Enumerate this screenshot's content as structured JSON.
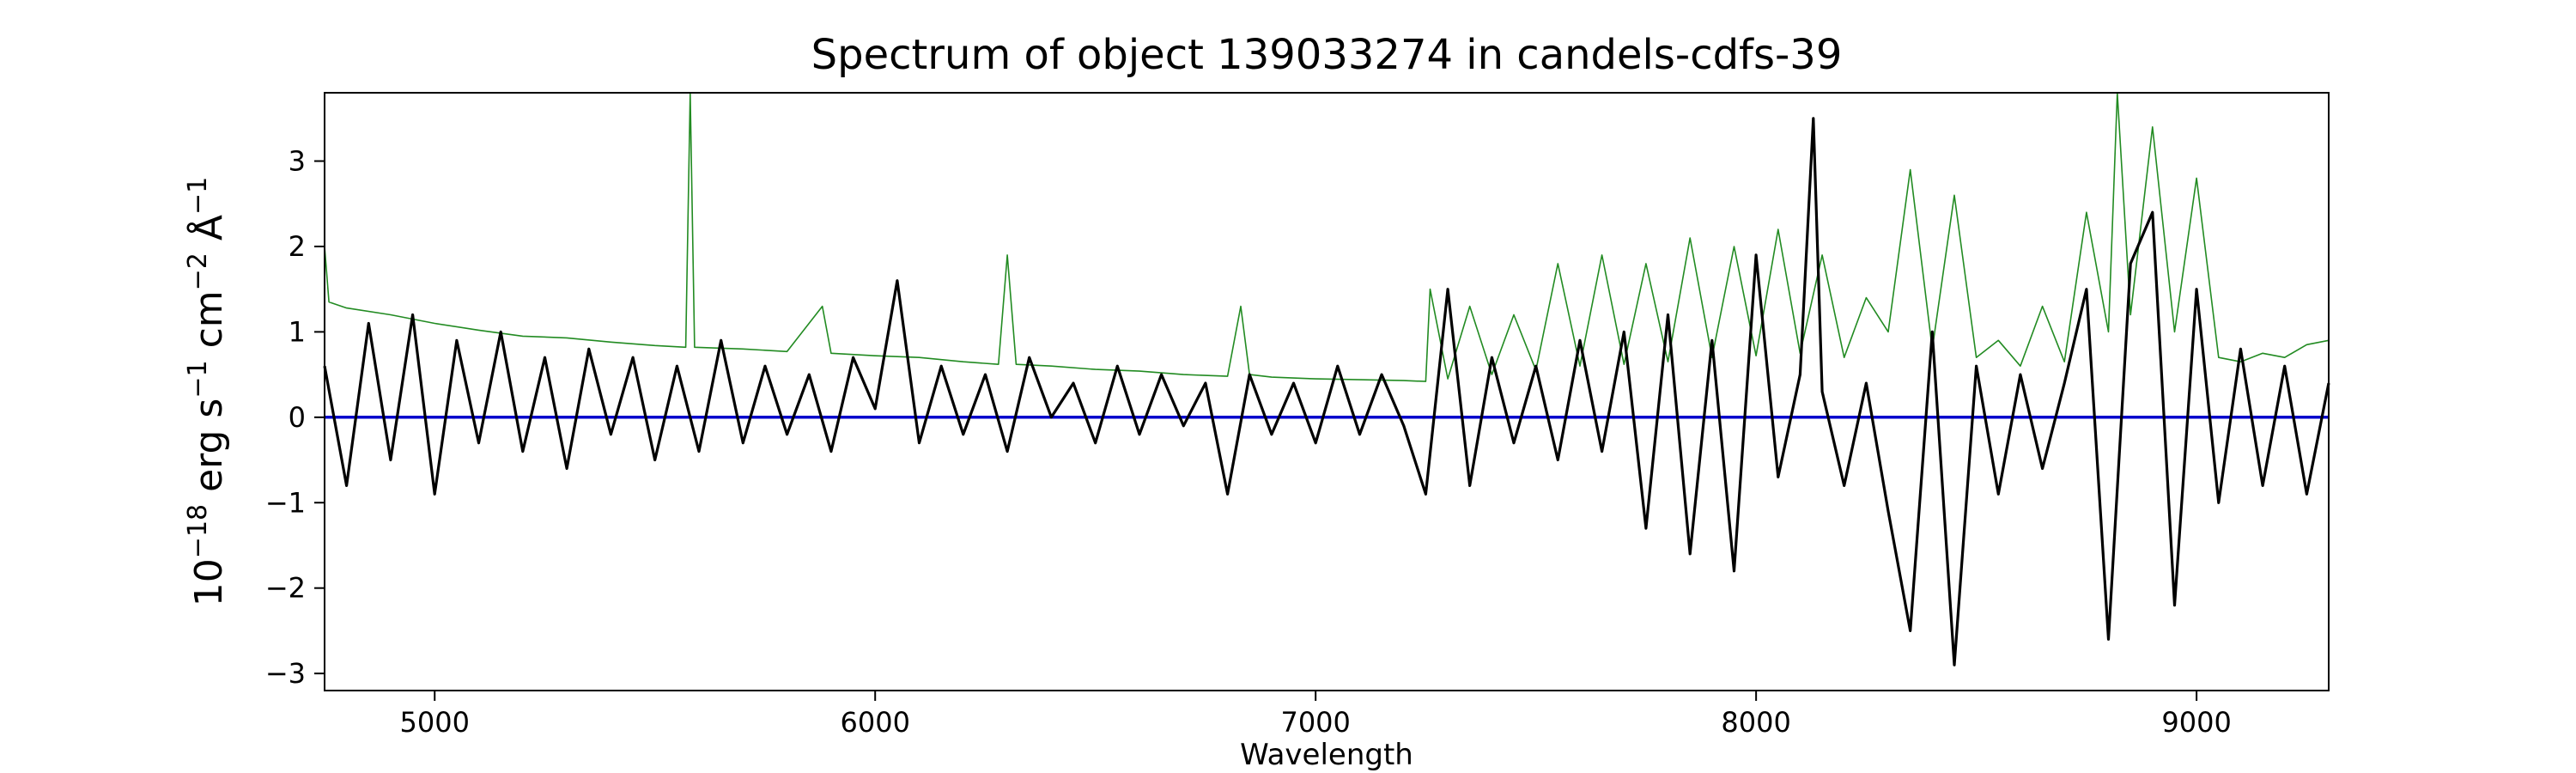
{
  "chart_data": {
    "type": "line",
    "title": "Spectrum of object 139033274 in candels-cdfs-39",
    "xlabel": "Wavelength",
    "ylabel": {
      "base": "10",
      "exp": "−18",
      "unit1": " erg s",
      "exp1": "−1",
      "unit2": " cm",
      "exp2": "−2",
      "unit3": " Å",
      "exp3": "−1"
    },
    "xlim": [
      4750,
      9300
    ],
    "ylim": [
      -3.2,
      3.8
    ],
    "x_ticks": [
      5000,
      6000,
      7000,
      8000,
      9000
    ],
    "x_tick_labels": [
      "5000",
      "6000",
      "7000",
      "8000",
      "9000"
    ],
    "y_ticks": [
      -3,
      -2,
      -1,
      0,
      1,
      2,
      3
    ],
    "y_tick_labels": [
      "−3",
      "−2",
      "−1",
      "0",
      "1",
      "2",
      "3"
    ],
    "grid": false,
    "colors": {
      "flux": "#000000",
      "error": "#228b22",
      "zero": "#0000cc"
    },
    "series": [
      {
        "role": "flux",
        "x": [
          4750,
          4800,
          4850,
          4900,
          4950,
          5000,
          5050,
          5100,
          5150,
          5200,
          5250,
          5300,
          5350,
          5400,
          5450,
          5500,
          5550,
          5600,
          5650,
          5700,
          5750,
          5800,
          5850,
          5900,
          5950,
          6000,
          6050,
          6100,
          6150,
          6200,
          6250,
          6300,
          6350,
          6400,
          6450,
          6500,
          6550,
          6600,
          6650,
          6700,
          6750,
          6800,
          6850,
          6900,
          6950,
          7000,
          7050,
          7100,
          7150,
          7200,
          7250,
          7300,
          7350,
          7400,
          7450,
          7500,
          7550,
          7600,
          7650,
          7700,
          7750,
          7800,
          7850,
          7900,
          7950,
          8000,
          8050,
          8100,
          8130,
          8150,
          8200,
          8250,
          8300,
          8350,
          8400,
          8450,
          8500,
          8550,
          8600,
          8650,
          8700,
          8750,
          8800,
          8850,
          8900,
          8950,
          9000,
          9050,
          9100,
          9150,
          9200,
          9250,
          9300
        ],
        "y": [
          0.6,
          -0.8,
          1.1,
          -0.5,
          1.2,
          -0.9,
          0.9,
          -0.3,
          1.0,
          -0.4,
          0.7,
          -0.6,
          0.8,
          -0.2,
          0.7,
          -0.5,
          0.6,
          -0.4,
          0.9,
          -0.3,
          0.6,
          -0.2,
          0.5,
          -0.4,
          0.7,
          0.1,
          1.6,
          -0.3,
          0.6,
          -0.2,
          0.5,
          -0.4,
          0.7,
          0.0,
          0.4,
          -0.3,
          0.6,
          -0.2,
          0.5,
          -0.1,
          0.4,
          -0.9,
          0.5,
          -0.2,
          0.4,
          -0.3,
          0.6,
          -0.2,
          0.5,
          -0.1,
          -0.9,
          1.5,
          -0.8,
          0.7,
          -0.3,
          0.6,
          -0.5,
          0.9,
          -0.4,
          1.0,
          -1.3,
          1.2,
          -1.6,
          0.9,
          -1.8,
          1.9,
          -0.7,
          0.5,
          3.5,
          0.3,
          -0.8,
          0.4,
          -1.1,
          -2.5,
          1.0,
          -2.9,
          0.6,
          -0.9,
          0.5,
          -0.6,
          0.4,
          1.5,
          -2.6,
          1.8,
          2.4,
          -2.2,
          1.5,
          -1.0,
          0.8,
          -0.8,
          0.6,
          -0.9,
          0.4
        ]
      },
      {
        "role": "error",
        "x": [
          4750,
          4760,
          4800,
          4900,
          5000,
          5100,
          5200,
          5300,
          5400,
          5500,
          5570,
          5580,
          5590,
          5700,
          5800,
          5880,
          5900,
          6000,
          6100,
          6200,
          6280,
          6300,
          6320,
          6400,
          6500,
          6600,
          6700,
          6800,
          6830,
          6850,
          6900,
          7000,
          7100,
          7200,
          7250,
          7260,
          7300,
          7350,
          7400,
          7450,
          7500,
          7550,
          7600,
          7650,
          7700,
          7750,
          7800,
          7850,
          7900,
          7950,
          8000,
          8050,
          8100,
          8150,
          8200,
          8250,
          8300,
          8350,
          8400,
          8450,
          8500,
          8550,
          8600,
          8650,
          8700,
          8750,
          8800,
          8820,
          8850,
          8900,
          8950,
          9000,
          9050,
          9100,
          9150,
          9200,
          9250,
          9300
        ],
        "y": [
          2.0,
          1.35,
          1.28,
          1.2,
          1.1,
          1.02,
          0.95,
          0.93,
          0.88,
          0.84,
          0.82,
          3.8,
          0.82,
          0.8,
          0.77,
          1.3,
          0.75,
          0.72,
          0.7,
          0.65,
          0.62,
          1.9,
          0.62,
          0.6,
          0.56,
          0.54,
          0.5,
          0.48,
          1.3,
          0.5,
          0.47,
          0.45,
          0.44,
          0.43,
          0.42,
          1.5,
          0.45,
          1.3,
          0.5,
          1.2,
          0.55,
          1.8,
          0.6,
          1.9,
          0.62,
          1.8,
          0.65,
          2.1,
          0.7,
          2.0,
          0.72,
          2.2,
          0.75,
          1.9,
          0.7,
          1.4,
          1.0,
          2.9,
          0.8,
          2.6,
          0.7,
          0.9,
          0.6,
          1.3,
          0.65,
          2.4,
          1.0,
          3.8,
          1.2,
          3.4,
          1.0,
          2.8,
          0.7,
          0.65,
          0.75,
          0.7,
          0.85,
          0.9
        ]
      },
      {
        "role": "zero",
        "x": [
          4750,
          9300
        ],
        "y": [
          0,
          0
        ]
      }
    ]
  }
}
